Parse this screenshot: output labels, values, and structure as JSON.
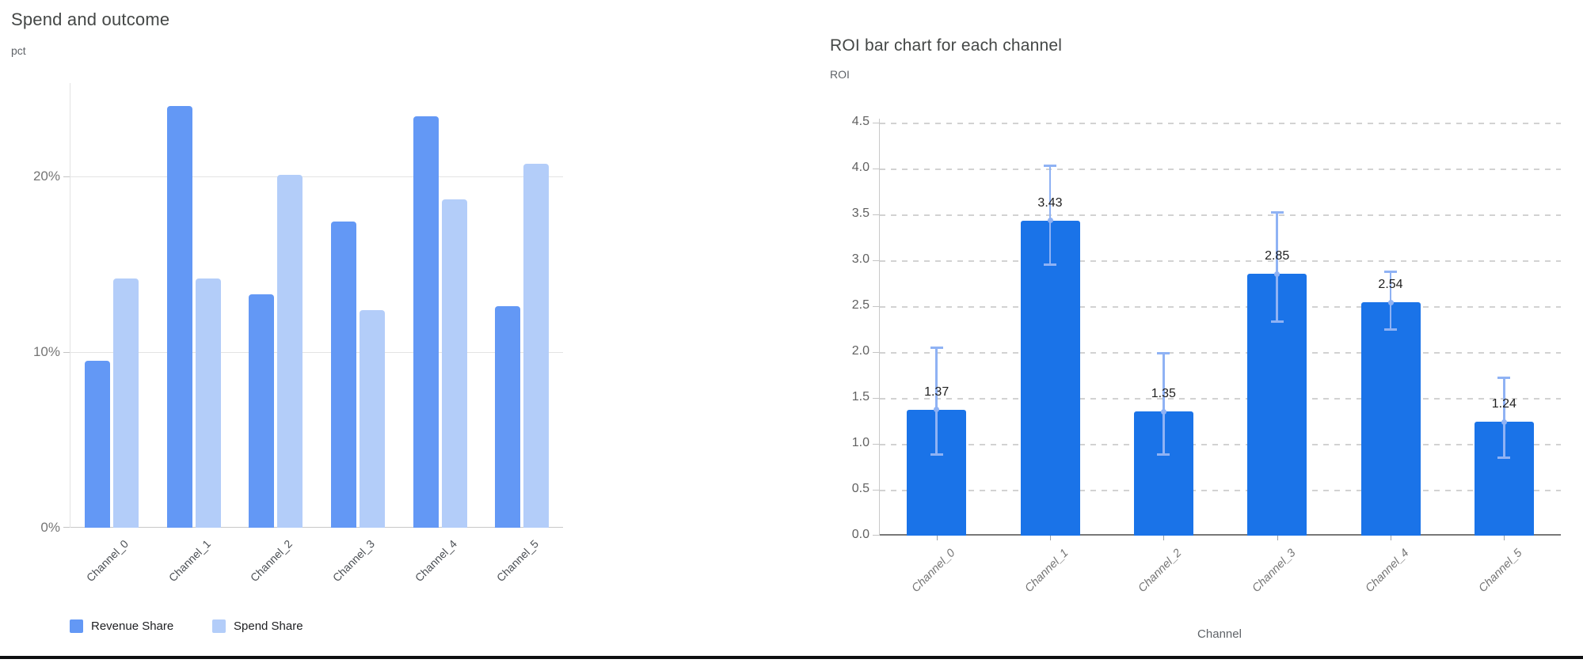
{
  "page": {
    "background": "#ffffff",
    "divider_color": "#0d0e10"
  },
  "chart_data": [
    {
      "id": "spend_outcome",
      "type": "bar",
      "title": "Spend and outcome",
      "y_axis_label": "pct",
      "categories": [
        "Channel_0",
        "Channel_1",
        "Channel_2",
        "Channel_3",
        "Channel_4",
        "Channel_5"
      ],
      "series": [
        {
          "name": "Revenue Share",
          "color": "#6398f5",
          "values": [
            9.5,
            24.0,
            13.3,
            17.4,
            23.4,
            12.6
          ]
        },
        {
          "name": "Spend Share",
          "color": "#b3cdf9",
          "values": [
            14.2,
            14.2,
            20.1,
            12.4,
            18.7,
            20.7
          ]
        }
      ],
      "y_ticks": {
        "labels": [
          "0%",
          "10%",
          "20%"
        ],
        "values": [
          0,
          10,
          20
        ]
      },
      "ylim": [
        0,
        25.3
      ],
      "grid": true,
      "legend_position": "bottom",
      "value_unit": "percent"
    },
    {
      "id": "roi_by_channel",
      "type": "bar",
      "title": "ROI bar chart for each channel",
      "y_axis_label": "ROI",
      "x_axis_label": "Channel",
      "categories": [
        "Channel_0",
        "Channel_1",
        "Channel_2",
        "Channel_3",
        "Channel_4",
        "Channel_5"
      ],
      "values": [
        1.37,
        3.43,
        1.35,
        2.85,
        2.54,
        1.24
      ],
      "bar_labels": [
        "1.37",
        "3.43",
        "1.35",
        "2.85",
        "2.54",
        "1.24"
      ],
      "error_low": [
        0.88,
        2.95,
        0.88,
        2.33,
        2.24,
        0.84
      ],
      "error_high": [
        2.05,
        4.03,
        1.99,
        3.52,
        2.88,
        1.72
      ],
      "bar_color": "#1a73e8",
      "error_bar_color": "#8fb2f4",
      "y_ticks": {
        "labels": [
          "0.0",
          "0.5",
          "1.0",
          "1.5",
          "2.0",
          "2.5",
          "3.0",
          "3.5",
          "4.0",
          "4.5"
        ],
        "values": [
          0,
          0.5,
          1,
          1.5,
          2,
          2.5,
          3,
          3.5,
          4,
          4.5
        ]
      },
      "ylim": [
        0,
        4.54
      ],
      "grid": true,
      "grid_style": "dashed",
      "legend_position": "none"
    }
  ]
}
